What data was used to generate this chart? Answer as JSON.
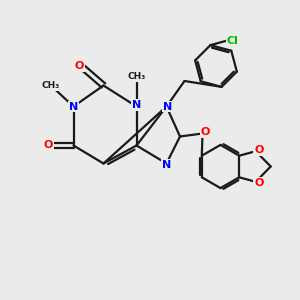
{
  "bg_color": "#ebebeb",
  "atom_colors": {
    "N": "#0000ff",
    "O": "#ff0000",
    "Cl": "#00bb00"
  },
  "bond_color": "#1a1a1a",
  "lw": 1.6,
  "font_size": 8.0
}
